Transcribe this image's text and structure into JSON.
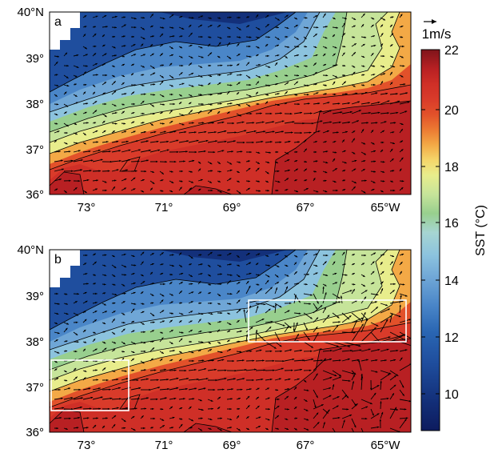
{
  "panels": [
    {
      "label": "a",
      "lat_labels": [
        "40°N",
        "39°",
        "38°",
        "37°",
        "36°"
      ],
      "lon_labels": [
        "73°",
        "71°",
        "69°",
        "67°",
        "65°W"
      ]
    },
    {
      "label": "b",
      "lat_labels": [
        "40°N",
        "39°",
        "38°",
        "37°",
        "36°"
      ],
      "lon_labels": [
        "73°",
        "71°",
        "69°",
        "67°",
        "65°W"
      ]
    }
  ],
  "colorbar": {
    "label": "SST (°C)",
    "tick_labels": [
      "22",
      "20",
      "18",
      "16",
      "14",
      "12",
      "10"
    ],
    "min": 8.5,
    "max": 22,
    "colors": [
      "#0d1b5e",
      "#13307a",
      "#1f4e9e",
      "#2a66b3",
      "#4a86c8",
      "#6fa6d6",
      "#8cc3de",
      "#a6d5d2",
      "#b6dcb4",
      "#98cf8e",
      "#c6e49a",
      "#e8ed8c",
      "#f5d66a",
      "#f3a946",
      "#ec7a32",
      "#e2512a",
      "#d93b2a",
      "#cf2f27",
      "#b82023",
      "#9e1a1f",
      "#7f141a"
    ]
  },
  "scale_vector": {
    "label": "1m/s"
  },
  "boxes_panel_b": [
    {
      "lon_range": [
        "73.8°W",
        "71.9°W"
      ],
      "lat_range": [
        "36.5°N",
        "37.6°N"
      ]
    },
    {
      "lon_range": [
        "68.5°W",
        "64.5°W"
      ],
      "lat_range": [
        "37.9°N",
        "38.9°N"
      ]
    }
  ]
}
